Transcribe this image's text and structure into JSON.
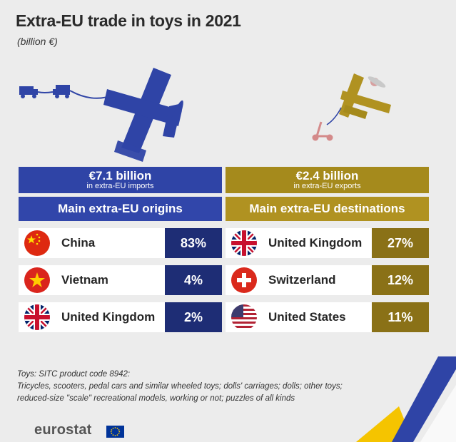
{
  "title": "Extra-EU trade in toys in 2021",
  "subtitle": "(billion €)",
  "imports": {
    "value_text": "€7.1 billion",
    "value_caption": "in extra-EU imports",
    "band_label": "Main extra-EU origins",
    "color": "#2f44a6",
    "rows": [
      {
        "country": "China",
        "pct": "83%",
        "flag": "flag-china-icon"
      },
      {
        "country": "Vietnam",
        "pct": "4%",
        "flag": "flag-vietnam-icon"
      },
      {
        "country": "United Kingdom",
        "pct": "2%",
        "flag": "flag-uk-icon"
      }
    ]
  },
  "exports": {
    "value_text": "€2.4 billion",
    "value_caption": "in extra-EU exports",
    "band_label": "Main extra-EU destinations",
    "color": "#a58a1c",
    "rows": [
      {
        "country": "United Kingdom",
        "pct": "27%",
        "flag": "flag-uk-icon"
      },
      {
        "country": "Switzerland",
        "pct": "12%",
        "flag": "flag-switzerland-icon"
      },
      {
        "country": "United States",
        "pct": "11%",
        "flag": "flag-usa-icon"
      }
    ]
  },
  "chart_data": [
    {
      "type": "table",
      "title": "Main extra-EU origins",
      "total": 7.1,
      "categories": [
        "China",
        "Vietnam",
        "United Kingdom"
      ],
      "values": [
        83,
        4,
        2
      ]
    },
    {
      "type": "table",
      "title": "Main extra-EU destinations",
      "total": 2.4,
      "categories": [
        "United Kingdom",
        "Switzerland",
        "United States"
      ],
      "values": [
        27,
        12,
        11
      ]
    }
  ],
  "footnote": {
    "line1": "Toys: SITC product code 8942:",
    "line2": "Tricycles, scooters, pedal cars and similar wheeled toys; dolls' carriages; dolls; other toys;",
    "line3": "reduced-size \"scale\" recreational models, working or not; puzzles of all kinds"
  },
  "logo": {
    "text": "eurostat"
  }
}
